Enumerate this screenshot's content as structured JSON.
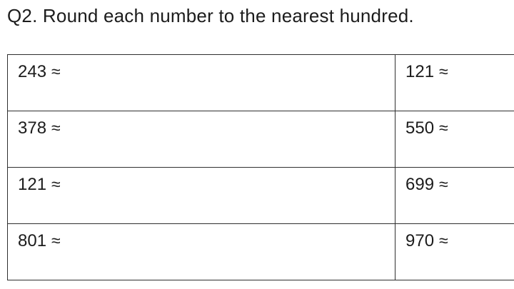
{
  "page": {
    "title": "Q2. Round each number to the nearest hundred."
  },
  "worksheet_table": {
    "rows": [
      {
        "left": {
          "number": "243",
          "symbol": "≈"
        },
        "right": {
          "number": "121",
          "symbol": "≈"
        }
      },
      {
        "left": {
          "number": "378",
          "symbol": "≈"
        },
        "right": {
          "number": "550",
          "symbol": "≈"
        }
      },
      {
        "left": {
          "number": "121",
          "symbol": "≈"
        },
        "right": {
          "number": "699",
          "symbol": "≈"
        }
      },
      {
        "left": {
          "number": "801",
          "symbol": "≈"
        },
        "right": {
          "number": "970",
          "symbol": "≈"
        }
      }
    ]
  },
  "colors": {
    "background": "#ffffff",
    "text": "#1c1c1c",
    "table_border": "#2f2f2f"
  }
}
